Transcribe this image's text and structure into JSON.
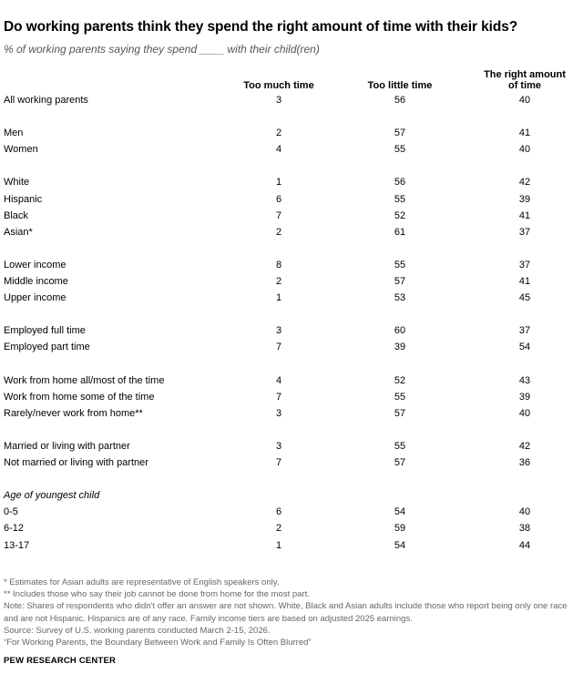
{
  "title": "Do working parents think they spend the right amount of time with their kids?",
  "subtitle": "% of working parents saying they spend ____ with their child(ren)",
  "chart_data": {
    "type": "table",
    "columns": [
      "Too much time",
      "Too little time",
      "The right amount of time"
    ],
    "column_header_lines": [
      [
        "Too much time"
      ],
      [
        "Too little time"
      ],
      [
        "The right amount",
        "of time"
      ]
    ],
    "rows": [
      {
        "label": "All working parents",
        "values": [
          3,
          56,
          40
        ]
      },
      {
        "gap": true
      },
      {
        "label": "Men",
        "values": [
          2,
          57,
          41
        ]
      },
      {
        "label": "Women",
        "values": [
          4,
          55,
          40
        ]
      },
      {
        "gap": true
      },
      {
        "label": "White",
        "values": [
          1,
          56,
          42
        ]
      },
      {
        "label": "Hispanic",
        "values": [
          6,
          55,
          39
        ]
      },
      {
        "label": "Black",
        "values": [
          7,
          52,
          41
        ]
      },
      {
        "label": "Asian*",
        "values": [
          2,
          61,
          37
        ]
      },
      {
        "gap": true
      },
      {
        "label": "Lower income",
        "values": [
          8,
          55,
          37
        ]
      },
      {
        "label": "Middle income",
        "values": [
          2,
          57,
          41
        ]
      },
      {
        "label": "Upper income",
        "values": [
          1,
          53,
          45
        ]
      },
      {
        "gap": true
      },
      {
        "label": "Employed full time",
        "values": [
          3,
          60,
          37
        ]
      },
      {
        "label": "Employed part time",
        "values": [
          7,
          39,
          54
        ]
      },
      {
        "gap": true
      },
      {
        "label": "Work from home all/most of the time",
        "values": [
          4,
          52,
          43
        ]
      },
      {
        "label": "Work from home some of the time",
        "values": [
          7,
          55,
          39
        ]
      },
      {
        "label": "Rarely/never work from home**",
        "values": [
          3,
          57,
          40
        ]
      },
      {
        "gap": true
      },
      {
        "label": "Married or living with partner",
        "values": [
          3,
          55,
          42
        ]
      },
      {
        "label": "Not married or living with partner",
        "values": [
          7,
          57,
          36
        ]
      },
      {
        "gap": true
      },
      {
        "label": "Age of youngest child",
        "group": true
      },
      {
        "label": "0-5",
        "values": [
          6,
          54,
          40
        ]
      },
      {
        "label": "6-12",
        "values": [
          2,
          59,
          38
        ]
      },
      {
        "label": "13-17",
        "values": [
          1,
          54,
          44
        ]
      }
    ]
  },
  "footnotes": [
    "* Estimates for Asian adults are representative of English speakers only.",
    "** Includes those who say their job cannot be done from home for the most part.",
    "Note: Shares of respondents who didn't offer an answer are not shown. White, Black and Asian adults include those who report being only one race and are not Hispanic. Hispanics are of any race. Family income tiers are based on adjusted 2025 earnings.",
    "Source: Survey of U.S. working parents conducted March 2-15, 2026.",
    "“For Working Parents, the Boundary Between Work and Family Is Often Blurred”"
  ],
  "brand": "PEW RESEARCH CENTER"
}
